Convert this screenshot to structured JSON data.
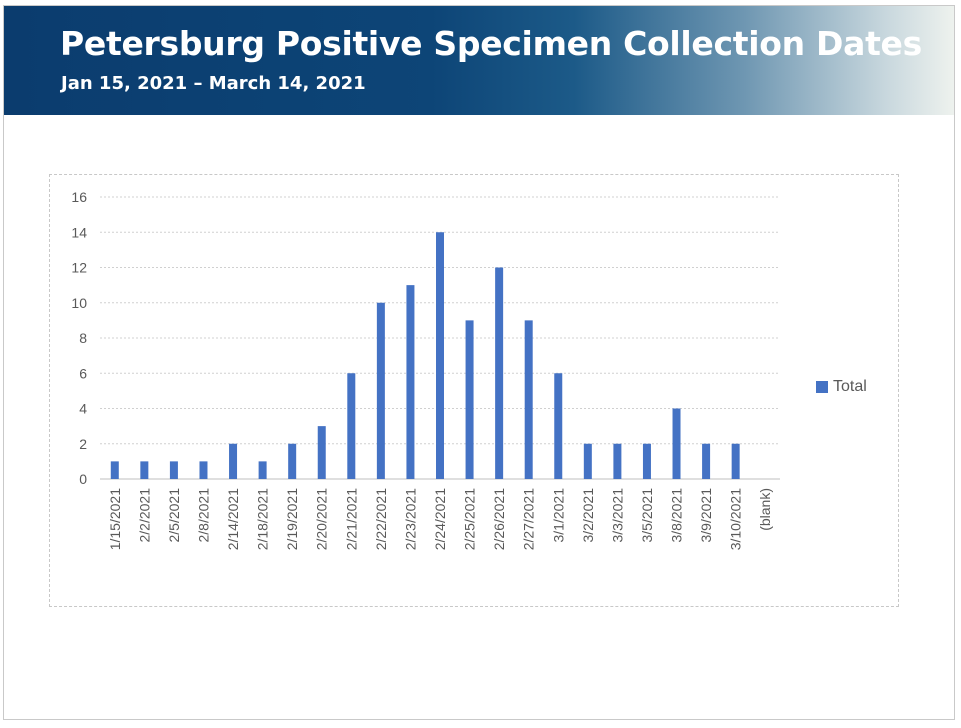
{
  "header": {
    "title": "Petersburg Positive Specimen Collection Dates",
    "subtitle": "Jan 15, 2021 – March 14, 2021"
  },
  "colors": {
    "bar": "#4472c4",
    "banner_dark": "#0b3c6e",
    "grid": "#d0d0d0",
    "axis_text": "#595959"
  },
  "chart_data": {
    "type": "bar",
    "title": "",
    "xlabel": "",
    "ylabel": "",
    "ylim": [
      0,
      16
    ],
    "yticks": [
      0,
      2,
      4,
      6,
      8,
      10,
      12,
      14,
      16
    ],
    "grid": true,
    "legend_position": "right",
    "categories": [
      "1/15/2021",
      "2/2/2021",
      "2/5/2021",
      "2/8/2021",
      "2/14/2021",
      "2/18/2021",
      "2/19/2021",
      "2/20/2021",
      "2/21/2021",
      "2/22/2021",
      "2/23/2021",
      "2/24/2021",
      "2/25/2021",
      "2/26/2021",
      "2/27/2021",
      "3/1/2021",
      "3/2/2021",
      "3/3/2021",
      "3/5/2021",
      "3/8/2021",
      "3/9/2021",
      "3/10/2021",
      "(blank)"
    ],
    "series": [
      {
        "name": "Total",
        "values": [
          1,
          1,
          1,
          1,
          2,
          1,
          2,
          3,
          6,
          10,
          11,
          14,
          9,
          12,
          9,
          6,
          2,
          2,
          2,
          4,
          2,
          2,
          null
        ]
      }
    ]
  }
}
